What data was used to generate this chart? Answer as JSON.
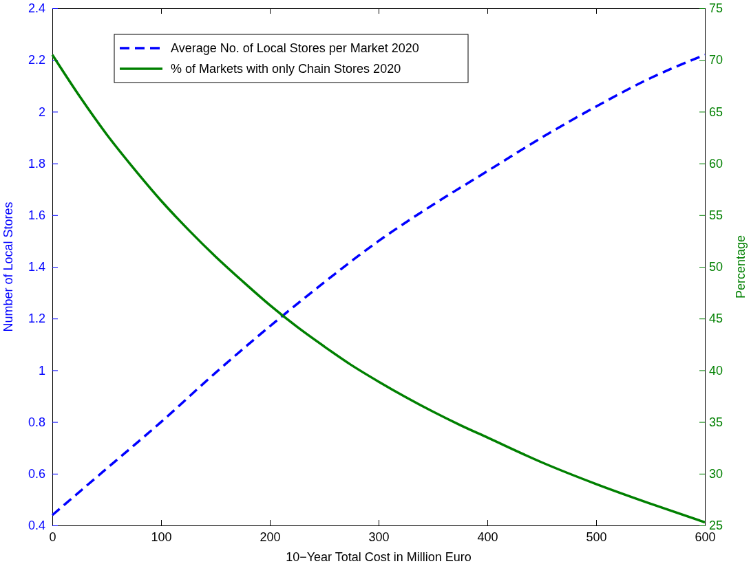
{
  "chart_data": {
    "type": "line",
    "xlabel": "10−Year Total Cost in Million Euro",
    "ylabel": "Number of Local Stores",
    "y2label": "Percentage",
    "xlim": [
      0,
      600
    ],
    "xticks": [
      0,
      100,
      200,
      300,
      400,
      500,
      600
    ],
    "ylim": [
      0.4,
      2.4
    ],
    "yticks": [
      0.4,
      0.6,
      0.8,
      1,
      1.2,
      1.4,
      1.6,
      1.8,
      2,
      2.2,
      2.4
    ],
    "y2lim": [
      25,
      75
    ],
    "y2ticks": [
      25,
      30,
      35,
      40,
      45,
      50,
      55,
      60,
      65,
      70,
      75
    ],
    "legend": "top left",
    "grid": false,
    "series": [
      {
        "name": "Average No. of Local Stores per Market 2020",
        "color": "#0000ff",
        "line_style": "dashed",
        "x": [
          0,
          50,
          100,
          150,
          200,
          250,
          300,
          350,
          400,
          450,
          500,
          550,
          600
        ],
        "values": [
          0.44,
          0.62,
          0.8,
          0.99,
          1.17,
          1.34,
          1.5,
          1.64,
          1.77,
          1.9,
          2.02,
          2.13,
          2.22
        ]
      },
      {
        "name": "% of Markets with only Chain Stores 2020",
        "color": "#008000",
        "line_style": "solid",
        "axis": "y2",
        "x": [
          0,
          25,
          50,
          75,
          100,
          125,
          150,
          175,
          200,
          225,
          250,
          275,
          300,
          325,
          350,
          375,
          400,
          450,
          500,
          550,
          600
        ],
        "values": [
          70.5,
          66.5,
          62.8,
          59.5,
          56.4,
          53.6,
          51,
          48.6,
          46.3,
          44.2,
          42.3,
          40.5,
          38.9,
          37.4,
          36,
          34.7,
          33.5,
          31.1,
          29,
          27.1,
          25.3
        ]
      }
    ]
  }
}
